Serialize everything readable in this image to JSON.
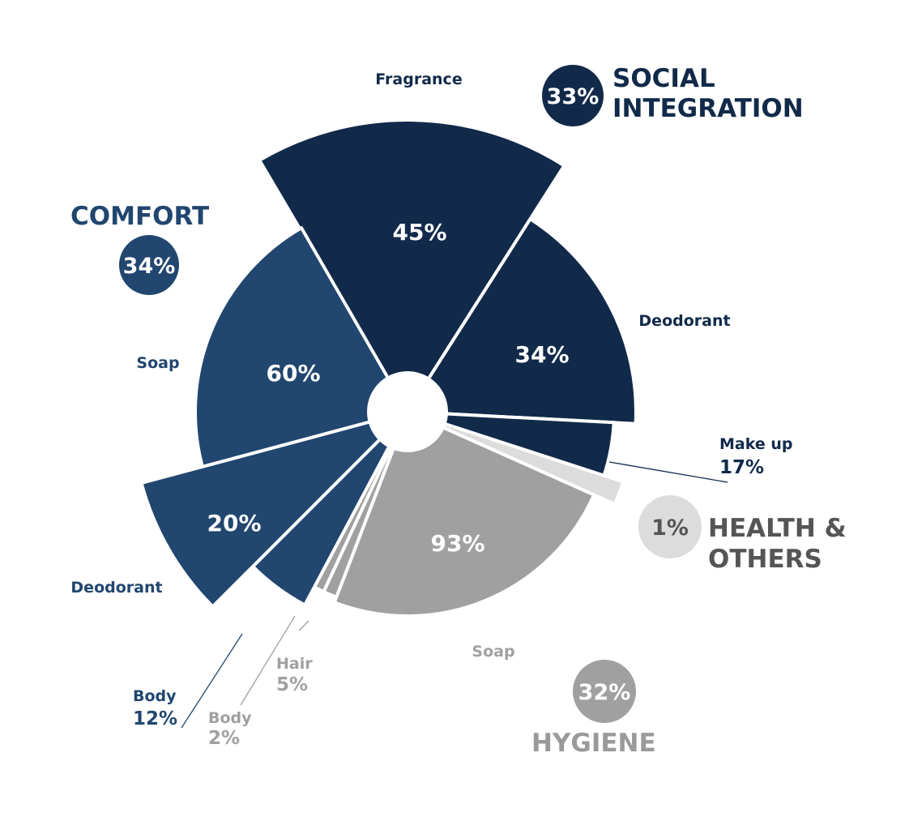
{
  "chart_data": {
    "type": "pie",
    "variant": "exploded-polar-area",
    "colors": {
      "comfort": "#21466f",
      "social": "#112a4a",
      "hygiene": "#a0a0a0",
      "health": "#dcdcdc",
      "hygiene_text": "#9a9a9a",
      "health_text": "#555555"
    },
    "groups": [
      {
        "key": "social",
        "share": "33%",
        "title_lines": [
          "SOCIAL",
          "INTEGRATION"
        ],
        "segments": [
          {
            "name": "Fragrance",
            "value": "45%"
          },
          {
            "name": "Deodorant",
            "value": "34%"
          },
          {
            "name": "Make up",
            "value": "17%"
          }
        ]
      },
      {
        "key": "health",
        "share": "1%",
        "title_lines": [
          "HEALTH &",
          "OTHERS"
        ],
        "segments": [
          {
            "name": "",
            "value": ""
          }
        ]
      },
      {
        "key": "hygiene",
        "share": "32%",
        "title_lines": [
          "HYGIENE"
        ],
        "segments": [
          {
            "name": "Soap",
            "value": "93%"
          },
          {
            "name": "Hair",
            "value": "5%"
          },
          {
            "name": "Body",
            "value": "2%"
          }
        ]
      },
      {
        "key": "comfort",
        "share": "34%",
        "title_lines": [
          "COMFORT"
        ],
        "segments": [
          {
            "name": "Body",
            "value": "12%"
          },
          {
            "name": "Deodorant",
            "value": "20%"
          },
          {
            "name": "Soap",
            "value": "60%"
          }
        ]
      }
    ]
  }
}
